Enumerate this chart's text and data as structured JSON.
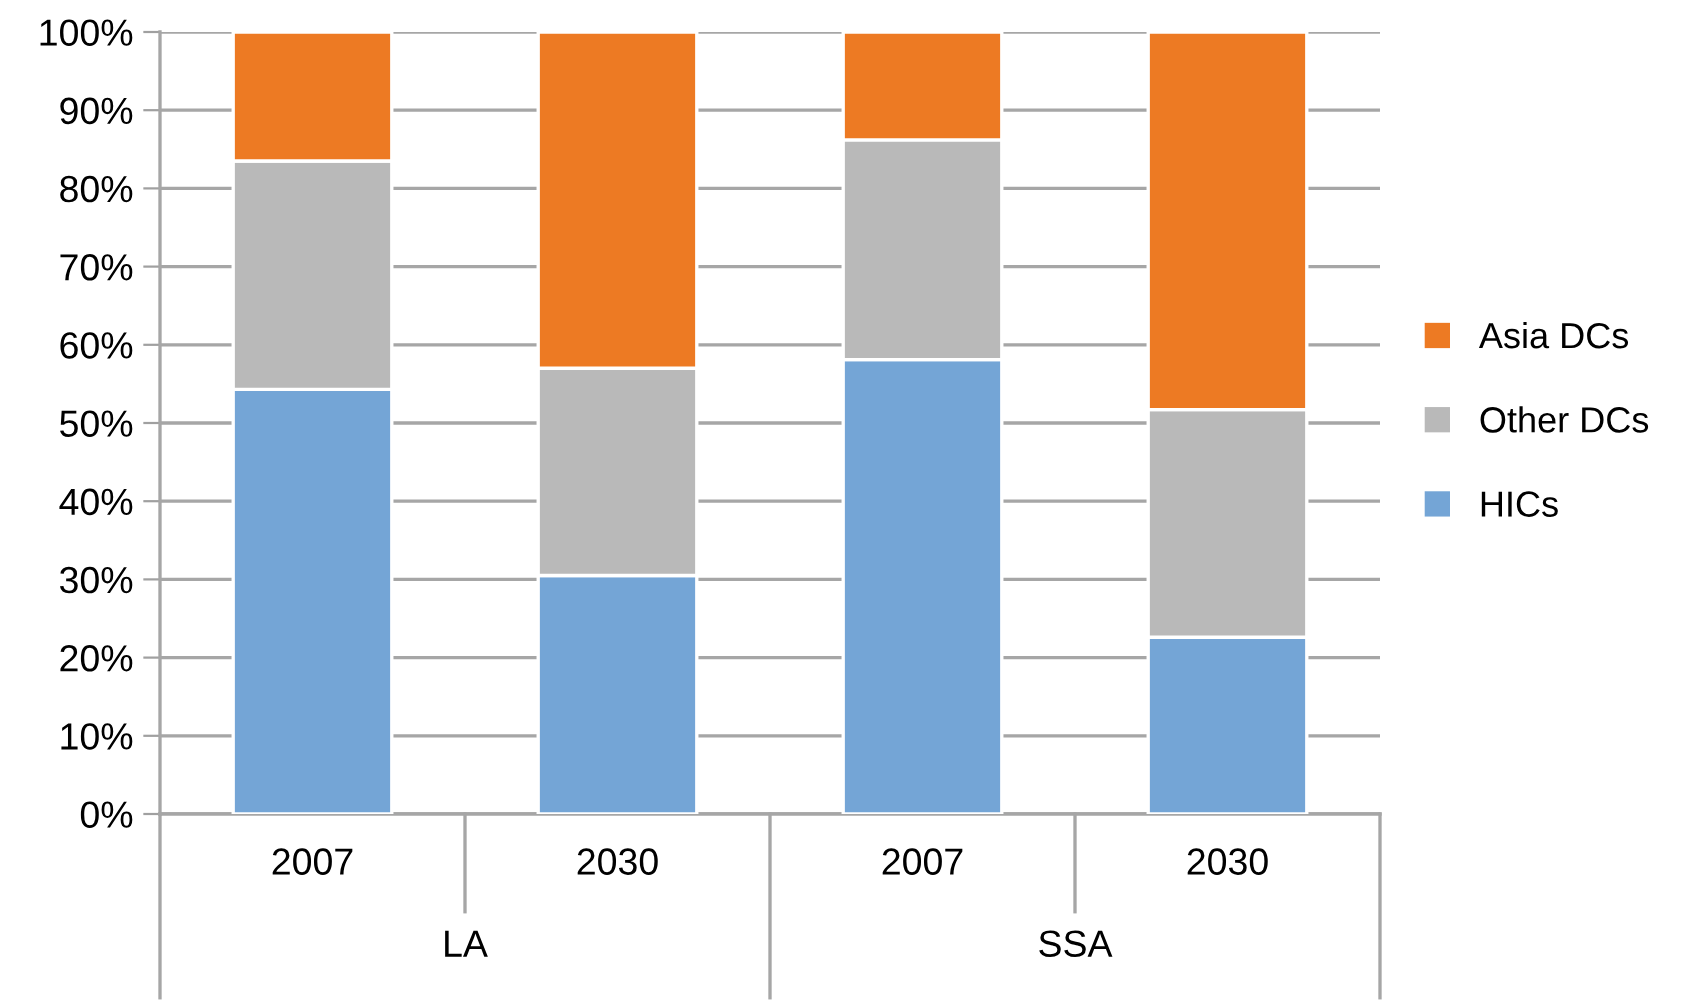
{
  "chart_data": {
    "type": "bar",
    "stacked": true,
    "categories": [
      "2007",
      "2030",
      "2007",
      "2030"
    ],
    "series": [
      {
        "name": "HICs",
        "color": "#74a5d6",
        "values": [
          54.3,
          30.5,
          58.1,
          22.6
        ]
      },
      {
        "name": "Other DCs",
        "color": "#b9b9b9",
        "values": [
          29.2,
          26.5,
          28.1,
          29.1
        ]
      },
      {
        "name": "Asia DCs",
        "color": "#ed7a23",
        "values": [
          16.5,
          43.0,
          13.8,
          48.3
        ]
      }
    ],
    "ylim": [
      0,
      100
    ],
    "yticks": [
      {
        "value": 0,
        "label": "0%"
      },
      {
        "value": 10,
        "label": "10%"
      },
      {
        "value": 20,
        "label": "20%"
      },
      {
        "value": 30,
        "label": "30%"
      },
      {
        "value": 40,
        "label": "40%"
      },
      {
        "value": 50,
        "label": "50%"
      },
      {
        "value": 60,
        "label": "60%"
      },
      {
        "value": 70,
        "label": "70%"
      },
      {
        "value": 80,
        "label": "80%"
      },
      {
        "value": 90,
        "label": "90%"
      },
      {
        "value": 100,
        "label": "100%"
      }
    ],
    "grid": "y",
    "legend": "right",
    "annotations": [
      "LA",
      "SSA"
    ]
  }
}
